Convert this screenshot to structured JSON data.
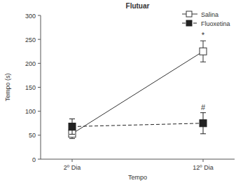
{
  "chart_data": {
    "type": "line",
    "title": "Flutuar",
    "x_label": "Tempo",
    "y_label": "Tempo (s)",
    "categories": [
      "2º Dia",
      "12º Dia"
    ],
    "series": [
      {
        "name": "Salina",
        "color": "#333333",
        "marker": "square-open",
        "line_style": "solid",
        "values": [
          53,
          225
        ],
        "errors": [
          10,
          22
        ],
        "annotations": [
          null,
          "*"
        ]
      },
      {
        "name": "Fluoxetina",
        "color": "#222222",
        "marker": "square",
        "line_style": "dashed",
        "values": [
          68,
          75
        ],
        "errors": [
          16,
          22
        ],
        "annotations": [
          null,
          "#"
        ]
      }
    ],
    "ylim": [
      0,
      300
    ],
    "yticks": [
      0,
      50,
      100,
      150,
      200,
      250,
      300
    ],
    "grid": false,
    "legend": "upper right"
  }
}
